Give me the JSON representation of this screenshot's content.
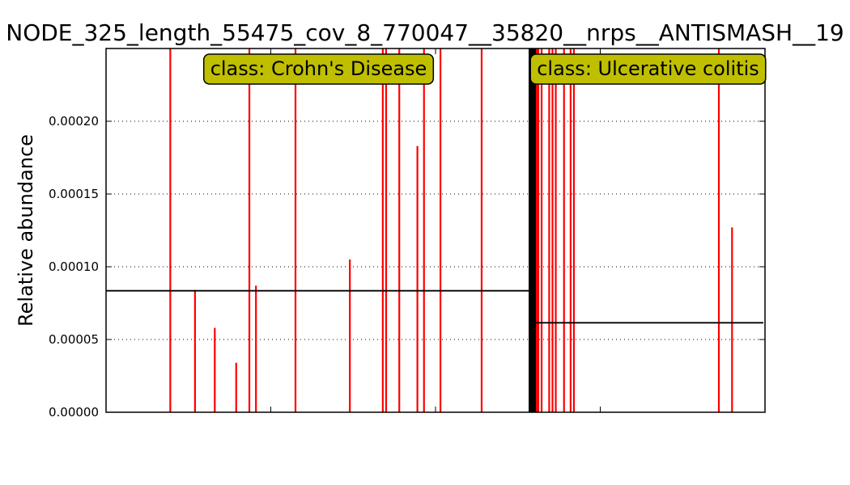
{
  "chart_data": {
    "type": "bar",
    "title": "NODE_325_length_55475_cov_8_770047__35820__nrps__ANTISMASH__19",
    "xlabel": "",
    "ylabel": "Relative abundance",
    "ylim": [
      0,
      0.00025
    ],
    "yticks": [
      "0.00000",
      "0.00005",
      "0.00010",
      "0.00015",
      "0.00020"
    ],
    "ytick_values": [
      0,
      5e-05,
      0.0001,
      0.00015,
      0.0002
    ],
    "grid": "horizontal dotted",
    "n_samples": 200,
    "bar_color": "#ff0000",
    "mean_line_color": "#000000",
    "class_label_color": "#bfbf00",
    "groups": [
      {
        "label": "class: Crohn's Disease",
        "n": 129,
        "mean": 8.35e-05,
        "bars": [
          {
            "x": 19.5,
            "value": 0.00025
          },
          {
            "x": 27,
            "value": 8.4e-05
          },
          {
            "x": 33,
            "value": 5.8e-05
          },
          {
            "x": 39.5,
            "value": 3.4e-05
          },
          {
            "x": 43.5,
            "value": 0.00025
          },
          {
            "x": 45.5,
            "value": 8.7e-05
          },
          {
            "x": 57.5,
            "value": 0.00025
          },
          {
            "x": 74,
            "value": 0.000105
          },
          {
            "x": 84,
            "value": 0.00025
          },
          {
            "x": 85,
            "value": 0.00025
          },
          {
            "x": 89,
            "value": 0.00025
          },
          {
            "x": 94.5,
            "value": 0.000183
          },
          {
            "x": 96.5,
            "value": 0.00025
          },
          {
            "x": 101.5,
            "value": 0.00025
          },
          {
            "x": 114,
            "value": 0.00025
          }
        ]
      },
      {
        "label": "class: Ulcerative colitis",
        "n": 71,
        "mean": 6.15e-05,
        "bars": [
          {
            "x": 129.2,
            "value": 0.00025
          },
          {
            "x": 129.6,
            "value": 0.00025
          },
          {
            "x": 130.0,
            "value": 0.00025
          },
          {
            "x": 130.4,
            "value": 0.00025
          },
          {
            "x": 130.8,
            "value": 0.00025
          },
          {
            "x": 131.2,
            "value": 0.00025
          },
          {
            "x": 132.2,
            "value": 0.00025
          },
          {
            "x": 134.5,
            "value": 0.00025
          },
          {
            "x": 135.5,
            "value": 0.00025
          },
          {
            "x": 136.5,
            "value": 0.00025
          },
          {
            "x": 139,
            "value": 0.00025
          },
          {
            "x": 141,
            "value": 0.00025
          },
          {
            "x": 142,
            "value": 0.00025
          },
          {
            "x": 186,
            "value": 0.00025
          },
          {
            "x": 190,
            "value": 0.000127
          }
        ]
      }
    ]
  }
}
